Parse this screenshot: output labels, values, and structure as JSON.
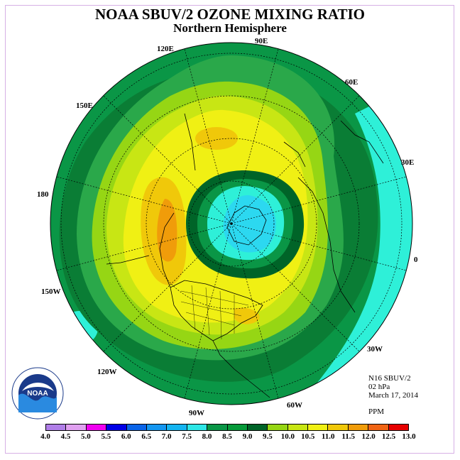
{
  "title": "NOAA SBUV/2 OZONE MIXING RATIO",
  "subtitle": "Northern Hemisphere",
  "longitude_labels": [
    "120E",
    "90E",
    "60E",
    "150E",
    "30E",
    "180",
    "0",
    "150W",
    "30W",
    "120W",
    "60W",
    "90W"
  ],
  "info": {
    "satellite": "N16 SBUV/2",
    "level": "02 hPa",
    "date": "March 17, 2014",
    "units": "PPM"
  },
  "legend": {
    "ticks": [
      "4.0",
      "4.5",
      "5.0",
      "5.5",
      "6.0",
      "6.5",
      "7.0",
      "7.5",
      "8.0",
      "8.5",
      "9.0",
      "9.5",
      "10.0",
      "10.5",
      "11.0",
      "11.5",
      "12.0",
      "12.5",
      "13.0"
    ],
    "colors": [
      "#b07ee8",
      "#e0a0f0",
      "#f000f0",
      "#0000e6",
      "#0a64e8",
      "#1496f0",
      "#14b4f0",
      "#2cd8f0",
      "#2ef0d8",
      "#0a8c3c",
      "#0aa03c",
      "#006428",
      "#96d614",
      "#c8e614",
      "#f0f014",
      "#f0c80a",
      "#f09c0a",
      "#f06414",
      "#e60000",
      "#8c5028"
    ],
    "swatch_colors": [
      "#b07ee8",
      "#e0a0f0",
      "#f000f0",
      "#0000e6",
      "#0a64e8",
      "#1496f0",
      "#14b4f0",
      "#2ee6e6",
      "#0a9646",
      "#079a3a",
      "#006428",
      "#96d614",
      "#c8e614",
      "#f0f014",
      "#f0c80a",
      "#f09c0a",
      "#f06414",
      "#e60000",
      "#8c5028"
    ]
  },
  "logo_text": "NOAA"
}
